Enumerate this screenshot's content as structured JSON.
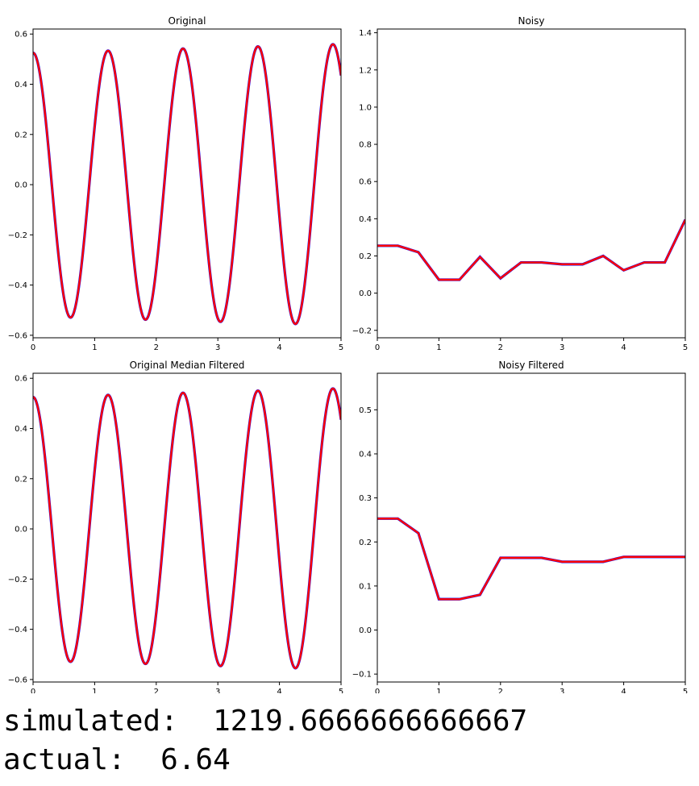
{
  "chart_data": [
    {
      "type": "line",
      "title": "Original",
      "xlim": [
        0,
        5
      ],
      "ylim": [
        -0.61,
        0.62
      ],
      "xticks": [
        0,
        1,
        2,
        3,
        4,
        5
      ],
      "yticks": [
        -0.6,
        -0.4,
        -0.2,
        0.0,
        0.2,
        0.4,
        0.6
      ],
      "xtick_labels": [
        "0",
        "1",
        "2",
        "3",
        "4",
        "5"
      ],
      "ytick_labels": [
        "−0.6",
        "−0.4",
        "−0.2",
        "0.0",
        "0.2",
        "0.4",
        "0.6"
      ],
      "signal": {
        "kind": "cosine",
        "amp_start": 0.525,
        "amp_end": 0.56,
        "period": 1.217,
        "offset": 0.0,
        "x_start": 0,
        "x_end": 5
      },
      "series": [
        {
          "color": "#0000ff",
          "style": "points"
        },
        {
          "color": "#ff0000",
          "style": "line"
        }
      ]
    },
    {
      "type": "line",
      "title": "Noisy",
      "xlim": [
        0,
        5
      ],
      "ylim": [
        -0.24,
        1.42
      ],
      "xticks": [
        0,
        1,
        2,
        3,
        4,
        5
      ],
      "yticks": [
        -0.2,
        0.0,
        0.2,
        0.4,
        0.6,
        0.8,
        1.0,
        1.2,
        1.4
      ],
      "xtick_labels": [
        "0",
        "1",
        "2",
        "3",
        "4",
        "5"
      ],
      "ytick_labels": [
        "−0.2",
        "0.0",
        "0.2",
        "0.4",
        "0.6",
        "0.8",
        "1.0",
        "1.2",
        "1.4"
      ],
      "x": [
        0,
        0.333,
        0.667,
        1.0,
        1.333,
        1.667,
        2.0,
        2.333,
        2.667,
        3.0,
        3.333,
        3.667,
        4.0,
        4.333,
        4.667,
        5.0
      ],
      "y": [
        0.255,
        0.255,
        0.22,
        0.072,
        0.072,
        0.195,
        0.08,
        0.165,
        0.165,
        0.155,
        0.155,
        0.2,
        0.123,
        0.165,
        0.165,
        0.395
      ],
      "series": [
        {
          "color": "#0000ff",
          "style": "points"
        },
        {
          "color": "#ff0000",
          "style": "line"
        }
      ]
    },
    {
      "type": "line",
      "title": "Original Median Filtered",
      "xlim": [
        0,
        5
      ],
      "ylim": [
        -0.61,
        0.62
      ],
      "xticks": [
        0,
        1,
        2,
        3,
        4,
        5
      ],
      "yticks": [
        -0.6,
        -0.4,
        -0.2,
        0.0,
        0.2,
        0.4,
        0.6
      ],
      "xtick_labels": [
        "0",
        "1",
        "2",
        "3",
        "4",
        "5"
      ],
      "ytick_labels": [
        "−0.6",
        "−0.4",
        "−0.2",
        "0.0",
        "0.2",
        "0.4",
        "0.6"
      ],
      "signal": {
        "kind": "cosine",
        "amp_start": 0.525,
        "amp_end": 0.56,
        "period": 1.217,
        "offset": 0.0,
        "x_start": 0,
        "x_end": 5
      },
      "series": [
        {
          "color": "#0000ff",
          "style": "points"
        },
        {
          "color": "#ff0000",
          "style": "line"
        }
      ]
    },
    {
      "type": "line",
      "title": "Noisy Filtered",
      "xlim": [
        0,
        5
      ],
      "ylim": [
        -0.118,
        0.583
      ],
      "xticks": [
        0,
        1,
        2,
        3,
        4,
        5
      ],
      "yticks": [
        -0.1,
        0.0,
        0.1,
        0.2,
        0.3,
        0.4,
        0.5
      ],
      "xtick_labels": [
        "0",
        "1",
        "2",
        "3",
        "4",
        "5"
      ],
      "ytick_labels": [
        "−0.1",
        "0.0",
        "0.1",
        "0.2",
        "0.3",
        "0.4",
        "0.5"
      ],
      "x": [
        0,
        0.333,
        0.667,
        1.0,
        1.333,
        1.667,
        2.0,
        2.333,
        2.667,
        3.0,
        3.333,
        3.667,
        4.0,
        4.333,
        4.667,
        5.0
      ],
      "y": [
        0.253,
        0.253,
        0.22,
        0.07,
        0.07,
        0.08,
        0.164,
        0.164,
        0.164,
        0.155,
        0.155,
        0.155,
        0.166,
        0.166,
        0.166,
        0.166
      ],
      "series": [
        {
          "color": "#0000ff",
          "style": "points"
        },
        {
          "color": "#ff0000",
          "style": "line"
        }
      ]
    }
  ],
  "readout": {
    "simulated": "simulated:  1219.6666666666667",
    "actual": "actual:  6.64"
  }
}
